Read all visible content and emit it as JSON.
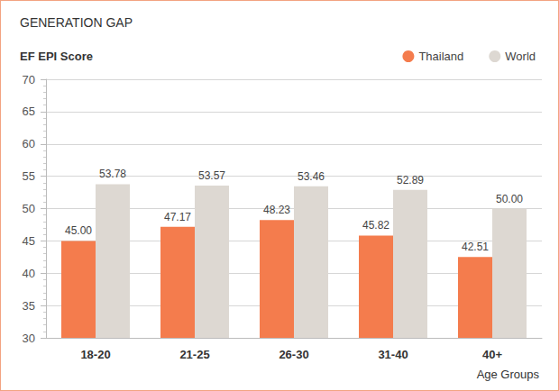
{
  "chart_data": {
    "type": "bar",
    "title": "GENERATION GAP",
    "ylabel": "EF EPI Score",
    "xlabel": "Age Groups",
    "categories": [
      "18-20",
      "21-25",
      "26-30",
      "31-40",
      "40+"
    ],
    "series": [
      {
        "name": "Thailand",
        "color": "#f47c4d",
        "values": [
          45.0,
          47.17,
          48.23,
          45.82,
          42.51
        ],
        "value_labels": [
          "45.00",
          "47.17",
          "48.23",
          "45.82",
          "42.51"
        ]
      },
      {
        "name": "World",
        "color": "#ddd8d2",
        "values": [
          53.78,
          53.57,
          53.46,
          52.89,
          50.0
        ],
        "value_labels": [
          "53.78",
          "53.57",
          "53.46",
          "52.89",
          "50.00"
        ]
      }
    ],
    "ylim": [
      30,
      70
    ],
    "yticks": [
      30,
      35,
      40,
      45,
      50,
      55,
      60,
      65,
      70
    ],
    "grid": true,
    "legend": "upper right",
    "data_labels": true
  }
}
